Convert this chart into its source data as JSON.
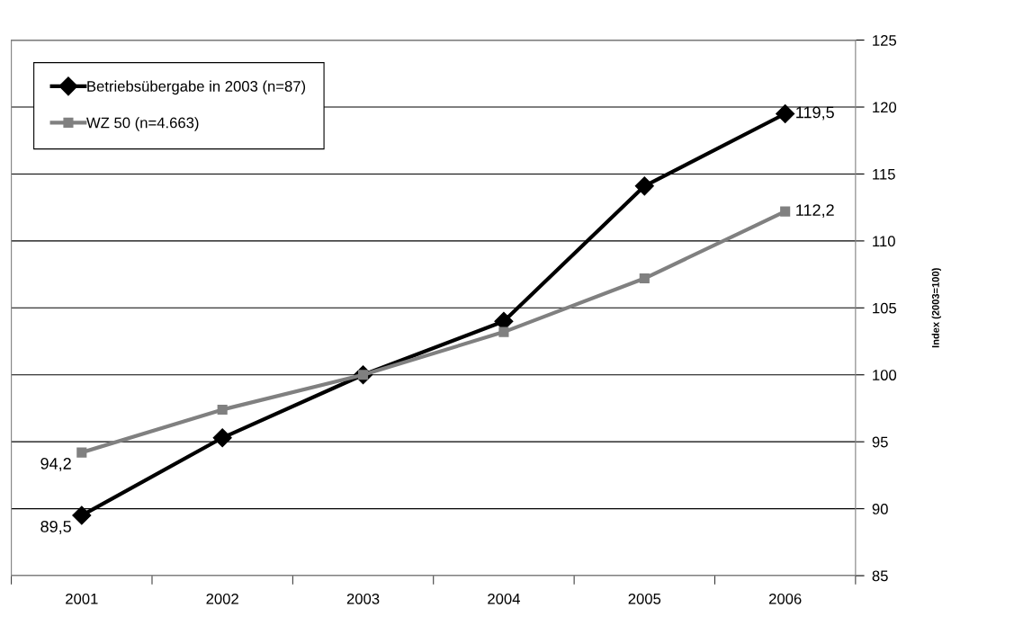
{
  "chart_data": {
    "type": "line",
    "categories": [
      "2001",
      "2002",
      "2003",
      "2004",
      "2005",
      "2006"
    ],
    "series": [
      {
        "name": "Betriebsübergabe in 2003 (n=87)",
        "color": "#000000",
        "marker": "diamond",
        "values": [
          89.5,
          95.3,
          100,
          104.0,
          114.1,
          119.5
        ],
        "value_labels": [
          "89,5",
          null,
          null,
          null,
          null,
          "119,5"
        ]
      },
      {
        "name": "WZ 50 (n=4.663)",
        "color": "#808080",
        "marker": "square",
        "values": [
          94.2,
          97.4,
          100,
          103.2,
          107.2,
          112.2
        ],
        "value_labels": [
          "94,2",
          null,
          null,
          null,
          null,
          "112,2"
        ]
      }
    ],
    "ylabel": "Index (2003=100)",
    "ylim": [
      85,
      125
    ],
    "yticks": [
      85,
      90,
      95,
      100,
      105,
      110,
      115,
      120,
      125
    ],
    "grid": "y",
    "legend": "top left",
    "line_style": "solid"
  }
}
